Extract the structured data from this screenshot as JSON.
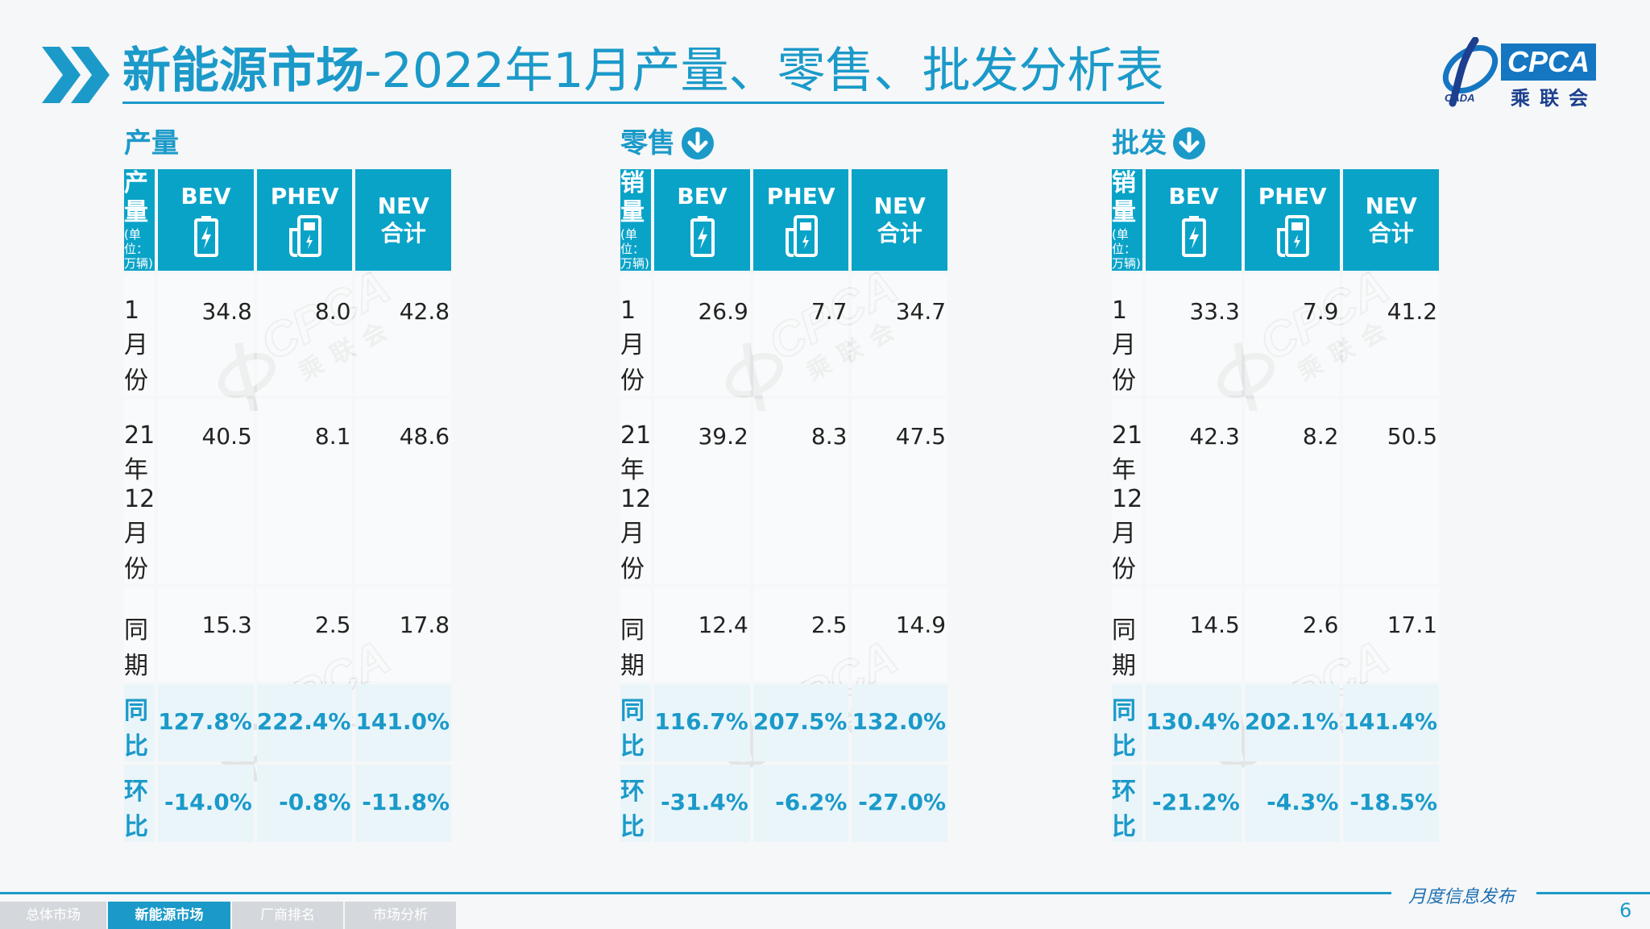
{
  "header": {
    "title_bold": "新能源市场",
    "title_rest": "-2022年1月产量、零售、批发分析表"
  },
  "logo": {
    "brand": "CPCA",
    "cn": "乘联会",
    "small": "CADA"
  },
  "watermark": {
    "brand": "CPCA",
    "cn": "乘联会"
  },
  "sections": [
    {
      "title": "产量",
      "has_arrow": false,
      "row_header": "产量",
      "unit": "(单位：万辆)",
      "columns": [
        {
          "label": "BEV",
          "icon": "battery-icon"
        },
        {
          "label": "PHEV",
          "icon": "charger-icon"
        },
        {
          "label": "NEV\n合计",
          "line1": "NEV",
          "line2": "合计"
        }
      ],
      "rows": [
        {
          "label": "1月份",
          "values": [
            "34.8",
            "8.0",
            "42.8"
          ],
          "type": "normal"
        },
        {
          "label": "21年12月份",
          "values": [
            "40.5",
            "8.1",
            "48.6"
          ],
          "type": "normal"
        },
        {
          "label": "同期",
          "values": [
            "15.3",
            "2.5",
            "17.8"
          ],
          "type": "normal"
        },
        {
          "label": "同比",
          "values": [
            "127.8%",
            "222.4%",
            "141.0%"
          ],
          "type": "pct"
        },
        {
          "label": "环比",
          "values": [
            "-14.0%",
            "-0.8%",
            "-11.8%"
          ],
          "type": "pct"
        }
      ]
    },
    {
      "title": "零售",
      "has_arrow": true,
      "row_header": "销量",
      "unit": "(单位：万辆)",
      "columns": [
        {
          "label": "BEV",
          "icon": "battery-icon"
        },
        {
          "label": "PHEV",
          "icon": "charger-icon"
        },
        {
          "label": "NEV\n合计",
          "line1": "NEV",
          "line2": "合计"
        }
      ],
      "rows": [
        {
          "label": "1月份",
          "values": [
            "26.9",
            "7.7",
            "34.7"
          ],
          "type": "normal"
        },
        {
          "label": "21年12月份",
          "values": [
            "39.2",
            "8.3",
            "47.5"
          ],
          "type": "normal"
        },
        {
          "label": "同期",
          "values": [
            "12.4",
            "2.5",
            "14.9"
          ],
          "type": "normal"
        },
        {
          "label": "同比",
          "values": [
            "116.7%",
            "207.5%",
            "132.0%"
          ],
          "type": "pct"
        },
        {
          "label": "环比",
          "values": [
            "-31.4%",
            "-6.2%",
            "-27.0%"
          ],
          "type": "pct"
        }
      ]
    },
    {
      "title": "批发",
      "has_arrow": true,
      "row_header": "销量",
      "unit": "(单位：万辆)",
      "columns": [
        {
          "label": "BEV",
          "icon": "battery-icon"
        },
        {
          "label": "PHEV",
          "icon": "charger-icon"
        },
        {
          "label": "NEV\n合计",
          "line1": "NEV",
          "line2": "合计"
        }
      ],
      "rows": [
        {
          "label": "1月份",
          "values": [
            "33.3",
            "7.9",
            "41.2"
          ],
          "type": "normal"
        },
        {
          "label": "21年12月份",
          "values": [
            "42.3",
            "8.2",
            "50.5"
          ],
          "type": "normal"
        },
        {
          "label": "同期",
          "values": [
            "14.5",
            "2.6",
            "17.1"
          ],
          "type": "normal"
        },
        {
          "label": "同比",
          "values": [
            "130.4%",
            "202.1%",
            "141.4%"
          ],
          "type": "pct"
        },
        {
          "label": "环比",
          "values": [
            "-21.2%",
            "-4.3%",
            "-18.5%"
          ],
          "type": "pct"
        }
      ]
    }
  ],
  "footer": {
    "publication": "月度信息发布",
    "page_number": "6",
    "tabs": [
      {
        "label": "总体市场",
        "active": false
      },
      {
        "label": "新能源市场",
        "active": true
      },
      {
        "label": "厂商排名",
        "active": false
      },
      {
        "label": "市场分析",
        "active": false
      }
    ]
  },
  "colors": {
    "accent": "#1b9ac9",
    "header_fill": "#0aa3c8",
    "logo_blue": "#1576c2"
  }
}
